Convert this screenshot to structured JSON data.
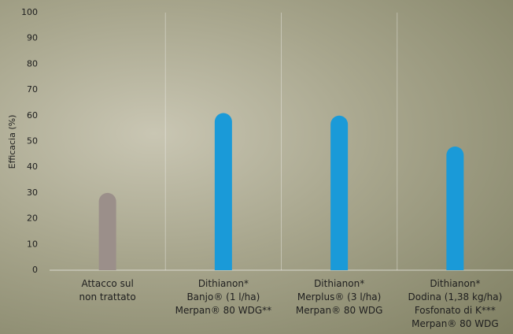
{
  "chart_data": {
    "type": "bar",
    "y_label": "Efficacia (%)",
    "categories": [
      "Attacco sul\nnon trattato",
      "Dithianon*\nBanjo® (1 l/ha)\nMerpan® 80 WDG**",
      "Dithianon*\nMerplus® (3 l/ha)\nMerpan® 80 WDG",
      "Dithianon*\nDodina (1,38 kg/ha)\nFosfonato di K***\nMerpan® 80 WDG"
    ],
    "values": [
      30,
      61,
      60,
      48
    ],
    "colors": [
      "#9b8f8a",
      "#1a9ad8",
      "#1a9ad8",
      "#1a9ad8"
    ],
    "ylim": [
      0,
      100
    ],
    "yticks": [
      0,
      10,
      20,
      30,
      40,
      50,
      60,
      70,
      80,
      90,
      100
    ]
  }
}
